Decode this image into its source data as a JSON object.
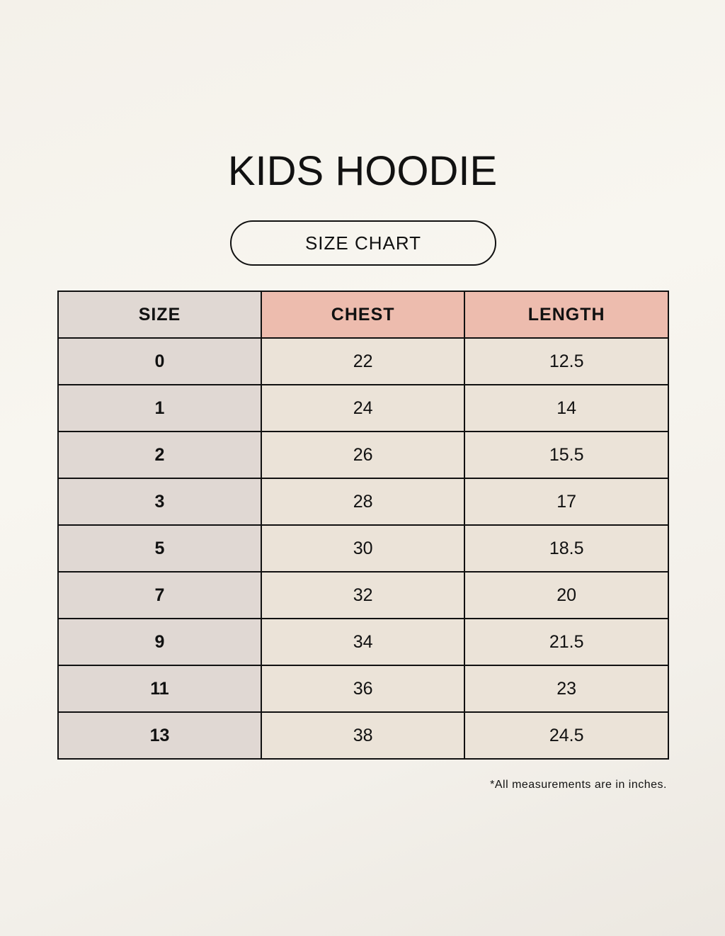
{
  "title": "KIDS HOODIE",
  "subtitle": "SIZE CHART",
  "colors": {
    "size_column": "#e0d8d3",
    "header_accent": "#edbcae",
    "cell": "#ebe3d8",
    "border": "#111111"
  },
  "table": {
    "headers": [
      "SIZE",
      "CHEST",
      "LENGTH"
    ],
    "rows": [
      [
        "0",
        "22",
        "12.5"
      ],
      [
        "1",
        "24",
        "14"
      ],
      [
        "2",
        "26",
        "15.5"
      ],
      [
        "3",
        "28",
        "17"
      ],
      [
        "5",
        "30",
        "18.5"
      ],
      [
        "7",
        "32",
        "20"
      ],
      [
        "9",
        "34",
        "21.5"
      ],
      [
        "11",
        "36",
        "23"
      ],
      [
        "13",
        "38",
        "24.5"
      ]
    ]
  },
  "note": "*All measurements are in inches."
}
